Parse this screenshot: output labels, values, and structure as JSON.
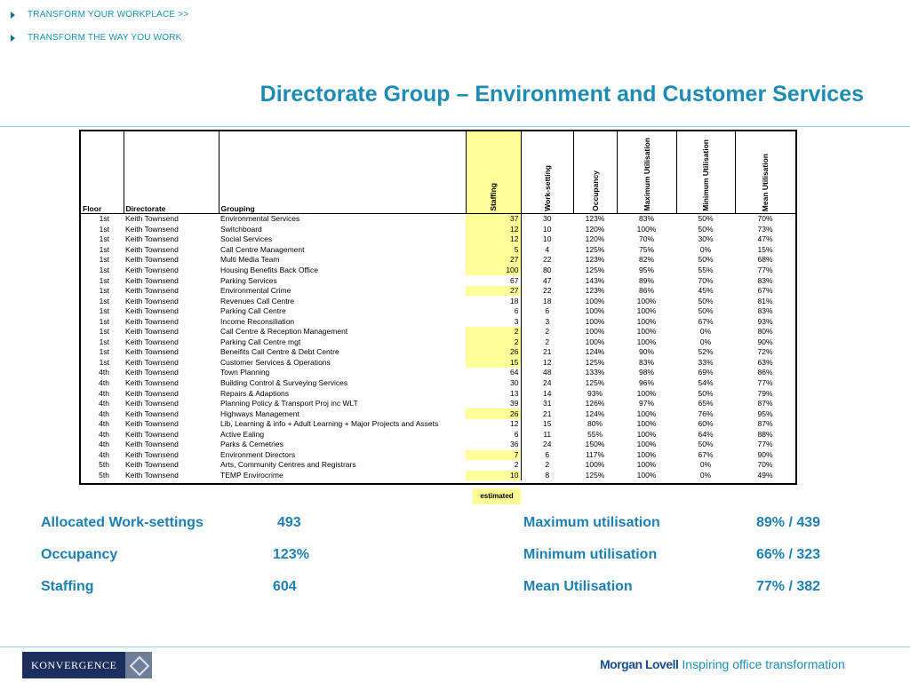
{
  "nav": {
    "link1": "TRANSFORM YOUR WORKPLACE >>",
    "link2": "TRANSFORM THE WAY YOU WORK"
  },
  "title": "Directorate Group – Environment and Customer Services",
  "table": {
    "headers": {
      "floor": "Floor",
      "directorate": "Directorate",
      "grouping": "Grouping",
      "staffing": "Staffing",
      "work_setting": "Work-setting",
      "occupancy": "Occupancy",
      "max_util": "Maximum Utilisation",
      "min_util": "Minimum Utilisation",
      "mean_util": "Mean Utilisation"
    },
    "rows": [
      {
        "floor": "1st",
        "directorate": "Keith Townsend",
        "grouping": "Environmental Services",
        "staffing": "37",
        "hl": true,
        "work_setting": "30",
        "occupancy": "123%",
        "max": "83%",
        "min": "50%",
        "mean": "70%"
      },
      {
        "floor": "1st",
        "directorate": "Keith Townsend",
        "grouping": "Switchboard",
        "staffing": "12",
        "hl": true,
        "work_setting": "10",
        "occupancy": "120%",
        "max": "100%",
        "min": "50%",
        "mean": "73%"
      },
      {
        "floor": "1st",
        "directorate": "Keith Townsend",
        "grouping": "Social Services",
        "staffing": "12",
        "hl": true,
        "work_setting": "10",
        "occupancy": "120%",
        "max": "70%",
        "min": "30%",
        "mean": "47%"
      },
      {
        "floor": "1st",
        "directorate": "Keith Townsend",
        "grouping": "Call Centre Management",
        "staffing": "5",
        "hl": true,
        "work_setting": "4",
        "occupancy": "125%",
        "max": "75%",
        "min": "0%",
        "mean": "15%"
      },
      {
        "floor": "1st",
        "directorate": "Keith Townsend",
        "grouping": "Multi Media Team",
        "staffing": "27",
        "hl": true,
        "work_setting": "22",
        "occupancy": "123%",
        "max": "82%",
        "min": "50%",
        "mean": "68%"
      },
      {
        "floor": "1st",
        "directorate": "Keith Townsend",
        "grouping": "Housing Benefits Back Office",
        "staffing": "100",
        "hl": true,
        "work_setting": "80",
        "occupancy": "125%",
        "max": "95%",
        "min": "55%",
        "mean": "77%"
      },
      {
        "floor": "1st",
        "directorate": "Keith Townsend",
        "grouping": "Parking Services",
        "staffing": "67",
        "hl": false,
        "work_setting": "47",
        "occupancy": "143%",
        "max": "89%",
        "min": "70%",
        "mean": "83%"
      },
      {
        "floor": "1st",
        "directorate": "Keith Townsend",
        "grouping": "Environmental Crime",
        "staffing": "27",
        "hl": true,
        "work_setting": "22",
        "occupancy": "123%",
        "max": "86%",
        "min": "45%",
        "mean": "67%"
      },
      {
        "floor": "1st",
        "directorate": "Keith Townsend",
        "grouping": "Revenues Call Centre",
        "staffing": "18",
        "hl": false,
        "work_setting": "18",
        "occupancy": "100%",
        "max": "100%",
        "min": "50%",
        "mean": "81%"
      },
      {
        "floor": "1st",
        "directorate": "Keith Townsend",
        "grouping": "Parking Call Centre",
        "staffing": "6",
        "hl": false,
        "work_setting": "6",
        "occupancy": "100%",
        "max": "100%",
        "min": "50%",
        "mean": "83%"
      },
      {
        "floor": "1st",
        "directorate": "Keith Townsend",
        "grouping": "Income Reconsiliation",
        "staffing": "3",
        "hl": false,
        "work_setting": "3",
        "occupancy": "100%",
        "max": "100%",
        "min": "67%",
        "mean": "93%"
      },
      {
        "floor": "1st",
        "directorate": "Keith Townsend",
        "grouping": "Call Centre & Reception Management",
        "staffing": "2",
        "hl": true,
        "work_setting": "2",
        "occupancy": "100%",
        "max": "100%",
        "min": "0%",
        "mean": "80%"
      },
      {
        "floor": "1st",
        "directorate": "Keith Townsend",
        "grouping": "Parking Call Centre mgt",
        "staffing": "2",
        "hl": true,
        "work_setting": "2",
        "occupancy": "100%",
        "max": "100%",
        "min": "0%",
        "mean": "90%"
      },
      {
        "floor": "1st",
        "directorate": "Keith Townsend",
        "grouping": "Beneifits Call Centre & Debt Centre",
        "staffing": "26",
        "hl": true,
        "work_setting": "21",
        "occupancy": "124%",
        "max": "90%",
        "min": "52%",
        "mean": "72%"
      },
      {
        "floor": "1st",
        "directorate": "Keith Townsend",
        "grouping": "Customer Services & Operations",
        "staffing": "15",
        "hl": true,
        "work_setting": "12",
        "occupancy": "125%",
        "max": "83%",
        "min": "33%",
        "mean": "63%"
      },
      {
        "floor": "4th",
        "directorate": "Keith Townsend",
        "grouping": "Town Planning",
        "staffing": "64",
        "hl": false,
        "work_setting": "48",
        "occupancy": "133%",
        "max": "98%",
        "min": "69%",
        "mean": "86%"
      },
      {
        "floor": "4th",
        "directorate": "Keith Townsend",
        "grouping": "Building Control & Surveying Services",
        "staffing": "30",
        "hl": false,
        "work_setting": "24",
        "occupancy": "125%",
        "max": "96%",
        "min": "54%",
        "mean": "77%"
      },
      {
        "floor": "4th",
        "directorate": "Keith Townsend",
        "grouping": "Repairs & Adaptions",
        "staffing": "13",
        "hl": false,
        "work_setting": "14",
        "occupancy": "93%",
        "max": "100%",
        "min": "50%",
        "mean": "79%"
      },
      {
        "floor": "4th",
        "directorate": "Keith Townsend",
        "grouping": "Planning Policy & Transport Proj inc WLT",
        "staffing": "39",
        "hl": false,
        "work_setting": "31",
        "occupancy": "126%",
        "max": "97%",
        "min": "65%",
        "mean": "87%"
      },
      {
        "floor": "4th",
        "directorate": "Keith Townsend",
        "grouping": "Highways Management",
        "staffing": "26",
        "hl": true,
        "work_setting": "21",
        "occupancy": "124%",
        "max": "100%",
        "min": "76%",
        "mean": "95%"
      },
      {
        "floor": "4th",
        "directorate": "Keith Townsend",
        "grouping": "Lib, Learning & info + Adult Learning + Major Projects and Assets",
        "staffing": "12",
        "hl": false,
        "work_setting": "15",
        "occupancy": "80%",
        "max": "100%",
        "min": "60%",
        "mean": "87%"
      },
      {
        "floor": "4th",
        "directorate": "Keith Townsend",
        "grouping": "Active Ealing",
        "staffing": "6",
        "hl": false,
        "work_setting": "11",
        "occupancy": "55%",
        "max": "100%",
        "min": "64%",
        "mean": "88%"
      },
      {
        "floor": "4th",
        "directorate": "Keith Townsend",
        "grouping": "Parks & Cemetries",
        "staffing": "36",
        "hl": false,
        "work_setting": "24",
        "occupancy": "150%",
        "max": "100%",
        "min": "50%",
        "mean": "77%"
      },
      {
        "floor": "4th",
        "directorate": "Keith Townsend",
        "grouping": "Environment Directors",
        "staffing": "7",
        "hl": true,
        "work_setting": "6",
        "occupancy": "117%",
        "max": "100%",
        "min": "67%",
        "mean": "90%"
      },
      {
        "floor": "5th",
        "directorate": "Keith Townsend",
        "grouping": "Arts, Community Centres and Registrars",
        "staffing": "2",
        "hl": false,
        "work_setting": "2",
        "occupancy": "100%",
        "max": "100%",
        "min": "0%",
        "mean": "70%"
      },
      {
        "floor": "5th",
        "directorate": "Keith Townsend",
        "grouping": "TEMP Envirocrime",
        "staffing": "10",
        "hl": true,
        "work_setting": "8",
        "occupancy": "125%",
        "max": "100%",
        "min": "0%",
        "mean": "49%"
      }
    ],
    "estimated_label": "estimated"
  },
  "stats": {
    "allocated_label": "Allocated Work-settings",
    "allocated_value": "493",
    "occupancy_label": "Occupancy",
    "occupancy_value": "123%",
    "staffing_label": "Staffing",
    "staffing_value": "604",
    "max_label": "Maximum utilisation",
    "max_value": "89% / 439",
    "min_label": "Minimum utilisation",
    "min_value": "66% / 323",
    "mean_label": "Mean Utilisation",
    "mean_value": "77% / 382"
  },
  "footer": {
    "konvergence": "KONVERGENCE",
    "morgan_lovell": "Morgan Lovell",
    "tagline": "Inspiring office transformation"
  },
  "colors": {
    "accent": "#1e8bb3",
    "highlight": "#ffff99",
    "logo_bg": "#1c2e5e"
  }
}
